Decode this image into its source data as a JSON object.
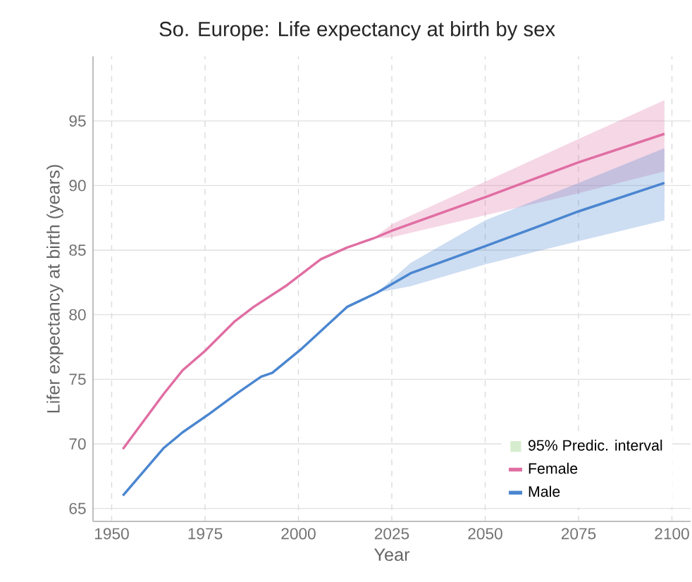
{
  "chart_data": {
    "type": "line",
    "title": "So. Europe: Life expectancy at birth by sex",
    "xlabel": "Year",
    "ylabel": "Lifer expectancy at birth (years)",
    "xlim": [
      1945,
      2105
    ],
    "xticks": [
      1950,
      1975,
      2000,
      2025,
      2050,
      2075,
      2100
    ],
    "ylim": [
      64,
      100
    ],
    "yticks": [
      65,
      70,
      75,
      80,
      85,
      90,
      95
    ],
    "grid": true,
    "legend": "bottom right",
    "marker": "none",
    "line_style": "solid",
    "series": [
      {
        "name": "95% Predic. interval",
        "type": "area",
        "color": "#d6ecce"
      },
      {
        "name": "Female",
        "color": "#e06ea3",
        "x": [
          1953,
          1964,
          1969,
          1975,
          1983,
          1988,
          1997,
          2006,
          2013,
          2020,
          2025,
          2050,
          2075,
          2098
        ],
        "values": [
          69.6,
          73.9,
          75.7,
          77.2,
          79.5,
          80.6,
          82.3,
          84.3,
          85.2,
          85.9,
          86.5,
          89.1,
          91.8,
          94.0
        ],
        "lower": [
          null,
          null,
          null,
          null,
          null,
          null,
          null,
          null,
          null,
          85.9,
          86.0,
          87.7,
          89.4,
          91.1
        ],
        "upper": [
          null,
          null,
          null,
          null,
          null,
          null,
          null,
          null,
          null,
          85.9,
          87.0,
          90.3,
          93.6,
          96.6
        ]
      },
      {
        "name": "Male",
        "color": "#4a86d0",
        "x": [
          1953,
          1964,
          1969,
          1976,
          1984,
          1990,
          1993,
          2001,
          2013,
          2021,
          2030,
          2050,
          2075,
          2098
        ],
        "values": [
          66.0,
          69.7,
          70.9,
          72.3,
          74.0,
          75.2,
          75.5,
          77.4,
          80.6,
          81.7,
          83.2,
          85.3,
          88.0,
          90.2
        ],
        "lower": [
          null,
          null,
          null,
          null,
          null,
          null,
          null,
          null,
          null,
          81.7,
          82.2,
          83.9,
          85.7,
          87.3
        ],
        "upper": [
          null,
          null,
          null,
          null,
          null,
          null,
          null,
          null,
          null,
          81.7,
          84.0,
          87.3,
          90.2,
          92.9
        ]
      }
    ]
  }
}
